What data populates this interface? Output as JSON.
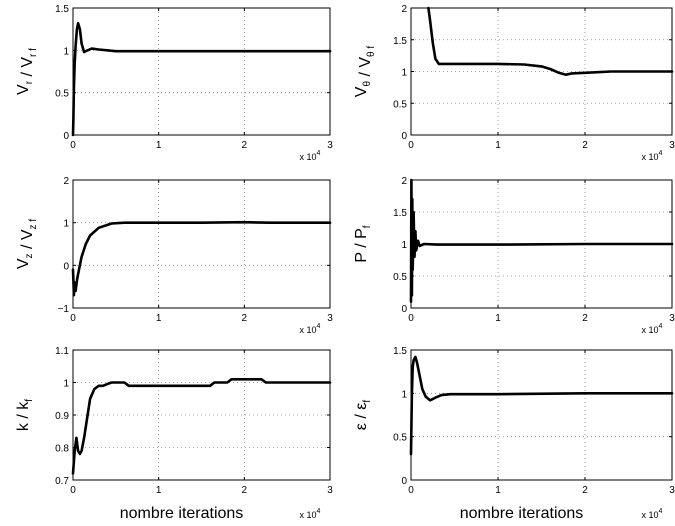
{
  "figure": {
    "xlabel_text": "nombre iterations",
    "x_exponent": "x 10",
    "x_exponent_power": "4"
  },
  "chart_data": [
    {
      "type": "line",
      "ylabel": "V_r / V_r f",
      "xlim": [
        0,
        3
      ],
      "ylim": [
        0,
        1.5
      ],
      "xticks": [
        "0",
        "1",
        "2",
        "3"
      ],
      "yticks": [
        "0",
        "0.5",
        "1",
        "1.5"
      ],
      "grid": true,
      "show_xlabel": false,
      "series": [
        {
          "x": [
            0,
            0.005,
            0.01,
            0.02,
            0.03,
            0.045,
            0.06,
            0.08,
            0.1,
            0.13,
            0.17,
            0.22,
            0.3,
            0.5,
            1,
            2,
            3
          ],
          "y": [
            0,
            0.2,
            0.55,
            0.85,
            1.05,
            1.25,
            1.32,
            1.25,
            1.08,
            0.98,
            1.0,
            1.02,
            1.01,
            0.99,
            0.99,
            0.99,
            0.99
          ]
        }
      ]
    },
    {
      "type": "line",
      "ylabel": "V_θ / V_θ f",
      "xlim": [
        0,
        3
      ],
      "ylim": [
        0,
        2
      ],
      "xticks": [
        "0",
        "1",
        "2",
        "3"
      ],
      "yticks": [
        "0",
        "0.5",
        "1",
        "1.5",
        "2"
      ],
      "grid": true,
      "show_xlabel": false,
      "series": [
        {
          "x": [
            0.2,
            0.22,
            0.25,
            0.28,
            0.32,
            0.4,
            0.6,
            1.0,
            1.3,
            1.5,
            1.6,
            1.7,
            1.78,
            1.85,
            2.0,
            2.3,
            3
          ],
          "y": [
            2.0,
            1.8,
            1.45,
            1.2,
            1.12,
            1.12,
            1.12,
            1.12,
            1.11,
            1.08,
            1.04,
            0.98,
            0.95,
            0.97,
            0.98,
            1.0,
            1.0
          ]
        }
      ]
    },
    {
      "type": "line",
      "ylabel": "V_z / V_z f",
      "xlim": [
        0,
        3
      ],
      "ylim": [
        -1,
        2
      ],
      "xticks": [
        "0",
        "1",
        "2",
        "3"
      ],
      "yticks": [
        "−1",
        "0",
        "1",
        "2"
      ],
      "grid": true,
      "show_xlabel": false,
      "series": [
        {
          "x": [
            0,
            0.01,
            0.02,
            0.03,
            0.05,
            0.07,
            0.1,
            0.15,
            0.2,
            0.3,
            0.45,
            0.6,
            1.0,
            1.5,
            2.0,
            2.3,
            3
          ],
          "y": [
            -0.1,
            -0.7,
            -0.4,
            -0.6,
            -0.3,
            -0.1,
            0.2,
            0.5,
            0.7,
            0.88,
            0.98,
            1.0,
            1.0,
            1.0,
            1.01,
            1.0,
            1.0
          ]
        }
      ]
    },
    {
      "type": "line",
      "ylabel": "P / P_f",
      "xlim": [
        0,
        3
      ],
      "ylim": [
        0,
        2
      ],
      "xticks": [
        "0",
        "1",
        "2",
        "3"
      ],
      "yticks": [
        "0",
        "0.5",
        "1",
        "1.5",
        "2"
      ],
      "grid": true,
      "show_xlabel": false,
      "series": [
        {
          "x": [
            0,
            0.005,
            0.01,
            0.015,
            0.02,
            0.03,
            0.04,
            0.05,
            0.06,
            0.08,
            0.1,
            0.15,
            0.3,
            1,
            2,
            3
          ],
          "y": [
            0.1,
            2.0,
            0.2,
            1.7,
            0.6,
            1.5,
            0.8,
            1.2,
            0.9,
            1.05,
            0.97,
            1.0,
            0.99,
            0.99,
            1.0,
            1.0
          ]
        }
      ]
    },
    {
      "type": "line",
      "ylabel": "k / k_f",
      "xlim": [
        0,
        3
      ],
      "ylim": [
        0.7,
        1.1
      ],
      "xticks": [
        "0",
        "1",
        "2",
        "3"
      ],
      "yticks": [
        "0.7",
        "0.8",
        "0.9",
        "1",
        "1.1"
      ],
      "grid": true,
      "show_xlabel": true,
      "series": [
        {
          "x": [
            0,
            0.02,
            0.04,
            0.06,
            0.08,
            0.1,
            0.13,
            0.17,
            0.2,
            0.25,
            0.3,
            0.35,
            0.4,
            0.45,
            0.5,
            0.6,
            0.65,
            0.7,
            1.0,
            1.6,
            1.65,
            1.8,
            1.85,
            2.0,
            2.2,
            2.25,
            2.5,
            3
          ],
          "y": [
            0.72,
            0.79,
            0.83,
            0.79,
            0.78,
            0.79,
            0.83,
            0.9,
            0.95,
            0.98,
            0.99,
            0.99,
            0.995,
            1.0,
            1.0,
            1.0,
            0.99,
            0.99,
            0.99,
            0.99,
            1.0,
            1.0,
            1.01,
            1.01,
            1.01,
            1.0,
            1.0,
            1.0
          ]
        }
      ]
    },
    {
      "type": "line",
      "ylabel": "ε / ε_f",
      "xlim": [
        0,
        3
      ],
      "ylim": [
        0,
        1.5
      ],
      "xticks": [
        "0",
        "1",
        "2",
        "3"
      ],
      "yticks": [
        "0",
        "0.5",
        "1",
        "1.5"
      ],
      "grid": true,
      "show_xlabel": true,
      "series": [
        {
          "x": [
            0,
            0.01,
            0.02,
            0.03,
            0.05,
            0.07,
            0.1,
            0.13,
            0.17,
            0.22,
            0.28,
            0.35,
            0.45,
            0.6,
            1,
            2,
            3
          ],
          "y": [
            0.3,
            1.0,
            1.3,
            1.38,
            1.42,
            1.35,
            1.2,
            1.05,
            0.96,
            0.92,
            0.95,
            0.98,
            0.99,
            0.99,
            0.99,
            1.0,
            1.0
          ]
        }
      ]
    }
  ]
}
